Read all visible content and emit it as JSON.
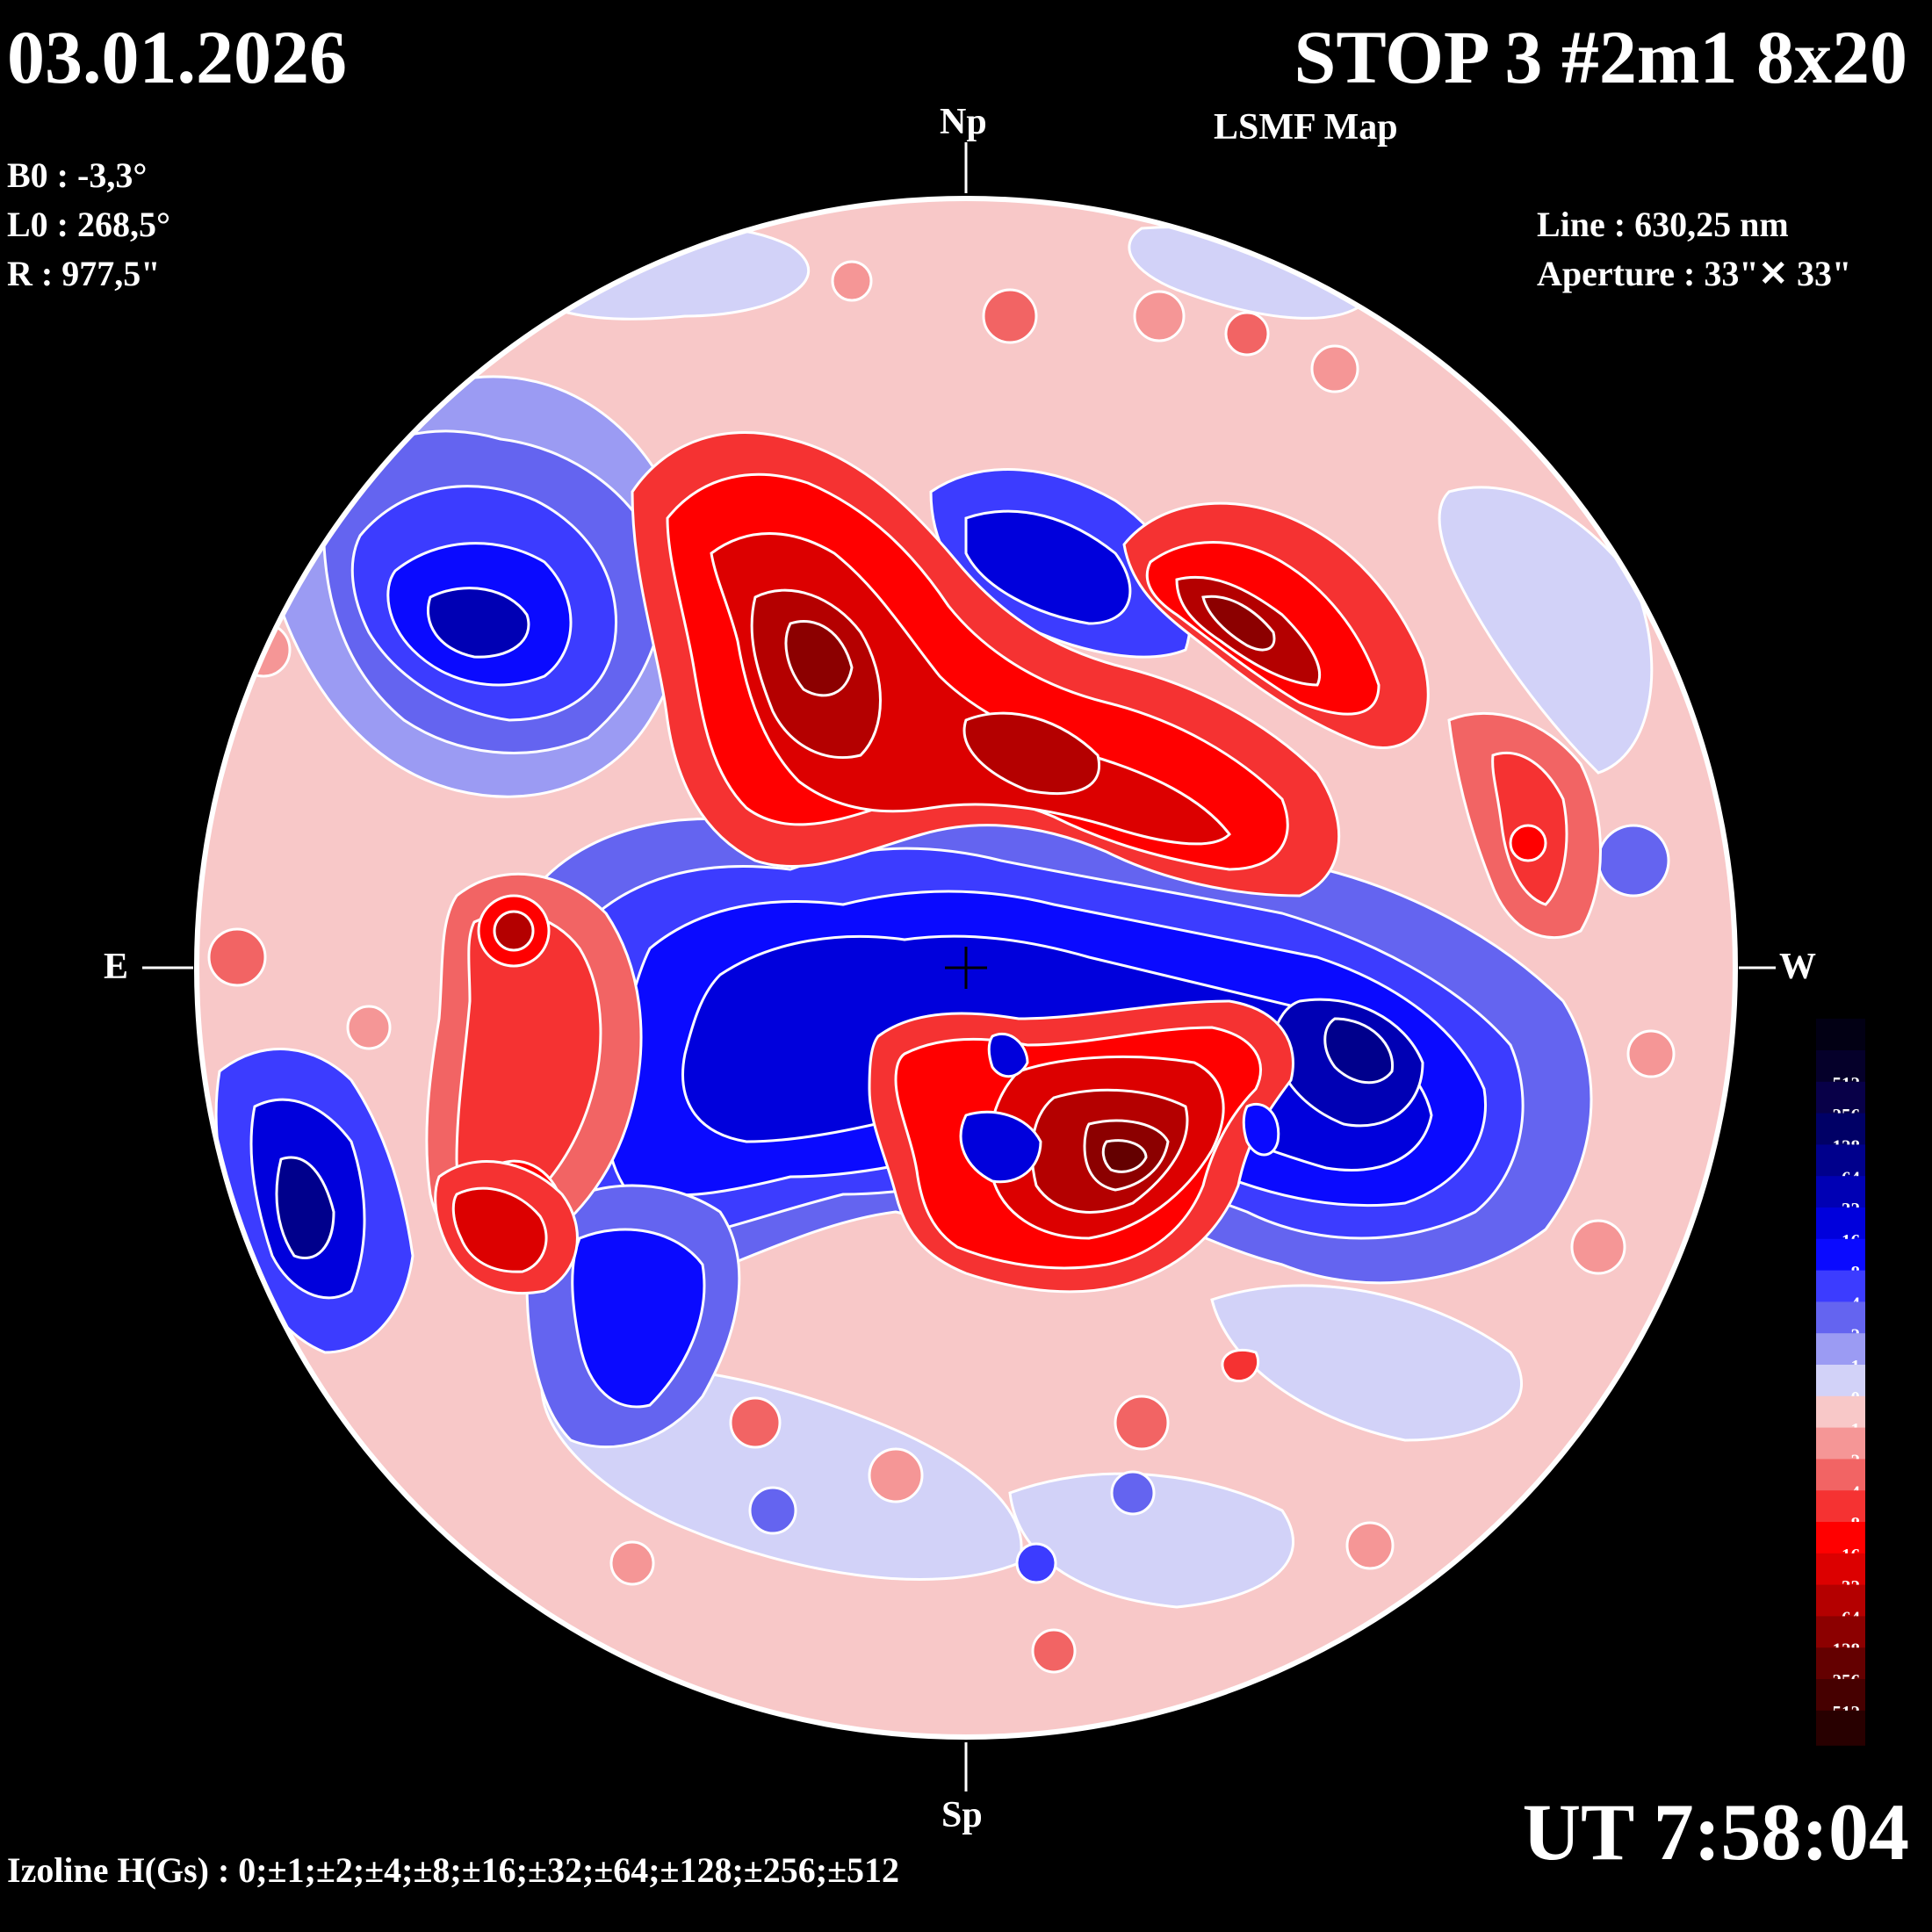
{
  "header": {
    "date": "03.01.2026",
    "title": "STOP 3 #2m1 8x20",
    "subtitle": "LSMF  Map"
  },
  "parameters": {
    "b0": "B0 : -3,3°",
    "l0": "L0 : 268,5°",
    "r": "R  : 977,5\"",
    "line": "Line :  630,25 nm",
    "aperture": "Aperture : 33\"✕ 33\""
  },
  "compass": {
    "north": "Np",
    "south": "Sp",
    "east": "E",
    "west": "W"
  },
  "footer": {
    "ut": "UT 7:58:04",
    "izoline": "Izoline H(Gs) : 0;±1;±2;±4;±8;±16;±32;±64;±128;±256;±512"
  },
  "legend": {
    "levels": [
      {
        "label": "-512",
        "color": "#05002a"
      },
      {
        "label": "-256",
        "color": "#080048"
      },
      {
        "label": "-128",
        "color": "#000066"
      },
      {
        "label": "-64",
        "color": "#00008c"
      },
      {
        "label": "-32",
        "color": "#0000b4"
      },
      {
        "label": "-16",
        "color": "#0000dc"
      },
      {
        "label": "-8",
        "color": "#0a0aff"
      },
      {
        "label": "-4",
        "color": "#3c3cff"
      },
      {
        "label": "-2",
        "color": "#6464f0"
      },
      {
        "label": "-1",
        "color": "#9b9bf3"
      },
      {
        "label": "0",
        "color": "#d2d2f8"
      },
      {
        "label": "1",
        "color": "#f8c8c8"
      },
      {
        "label": "2",
        "color": "#f59696"
      },
      {
        "label": "4",
        "color": "#f26464"
      },
      {
        "label": "8",
        "color": "#f53232"
      },
      {
        "label": "16",
        "color": "#ff0000"
      },
      {
        "label": "32",
        "color": "#dc0000"
      },
      {
        "label": "64",
        "color": "#b40000"
      },
      {
        "label": "128",
        "color": "#8c0000"
      },
      {
        "label": "256",
        "color": "#640000"
      },
      {
        "label": "512",
        "color": "#460000"
      }
    ],
    "top_color": "#020014",
    "bottom_color": "#280000"
  },
  "map": {
    "background_quiet": "#f8c8c8",
    "neutral": "#d2d2f8",
    "contour": "#ffffff",
    "center_cross": "#000000"
  }
}
